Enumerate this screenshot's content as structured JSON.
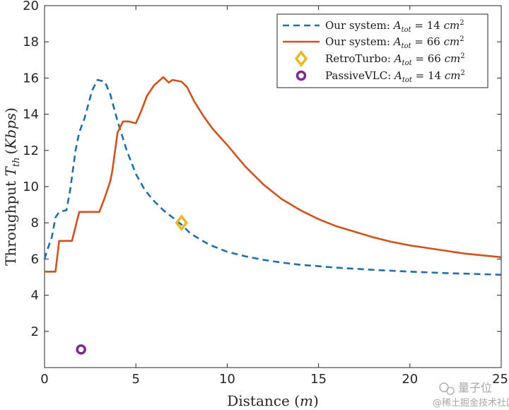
{
  "chart_data": {
    "type": "line",
    "title": "",
    "xlabel": "Distance (m)",
    "ylabel": "Throughput T_th (Kbps)",
    "xlim": [
      0,
      25
    ],
    "ylim": [
      0,
      20
    ],
    "xticks": [
      "0",
      "5",
      "10",
      "15",
      "20",
      "25"
    ],
    "yticks": [
      "2",
      "4",
      "6",
      "8",
      "10",
      "12",
      "14",
      "16",
      "18",
      "20"
    ],
    "grid": false,
    "legend_position": "top-right",
    "series": [
      {
        "name": "Our system: A_tot = 14 cm^2",
        "style": "dashed",
        "color": "#1f6fad",
        "x": [
          0,
          0.15,
          0.4,
          0.6,
          0.8,
          1.2,
          1.4,
          1.7,
          1.9,
          2.2,
          2.6,
          2.9,
          3.3,
          3.6,
          4.0,
          4.5,
          5.0,
          5.5,
          6.0,
          6.5,
          7.0,
          7.5,
          8,
          9,
          10,
          11,
          12,
          13,
          14,
          15,
          16,
          17,
          18,
          19,
          20,
          21,
          22,
          23,
          24,
          25
        ],
        "y": [
          6.0,
          6.5,
          7.2,
          8.3,
          8.6,
          8.7,
          9.8,
          12.0,
          13.0,
          13.8,
          15.3,
          15.9,
          15.8,
          15.1,
          13.6,
          12.0,
          10.7,
          9.8,
          9.2,
          8.7,
          8.3,
          7.9,
          7.4,
          6.8,
          6.4,
          6.15,
          5.95,
          5.8,
          5.68,
          5.6,
          5.52,
          5.46,
          5.4,
          5.35,
          5.3,
          5.26,
          5.22,
          5.19,
          5.16,
          5.13
        ]
      },
      {
        "name": "Our system: A_tot = 66 cm^2",
        "style": "solid",
        "color": "#d0521c",
        "x": [
          0,
          0.6,
          0.8,
          1.5,
          1.9,
          2.0,
          3.0,
          3.3,
          3.6,
          3.7,
          4.0,
          4.3,
          4.6,
          5.0,
          5.3,
          5.6,
          6.0,
          6.5,
          6.8,
          7.0,
          7.5,
          7.8,
          8.2,
          8.7,
          9.2,
          10,
          11,
          12,
          13,
          14,
          15,
          16,
          17,
          18,
          19,
          20,
          21,
          22,
          23,
          24,
          25
        ],
        "y": [
          5.3,
          5.3,
          7.0,
          7.0,
          8.6,
          8.6,
          8.6,
          9.4,
          10.3,
          10.8,
          13.0,
          13.6,
          13.6,
          13.5,
          14.2,
          15.0,
          15.6,
          16.05,
          15.75,
          15.9,
          15.8,
          15.5,
          14.7,
          13.9,
          13.2,
          12.3,
          11.1,
          10.1,
          9.3,
          8.7,
          8.2,
          7.8,
          7.5,
          7.2,
          6.95,
          6.75,
          6.6,
          6.45,
          6.3,
          6.2,
          6.1
        ]
      },
      {
        "name": "RetroTurbo: A_tot = 66 cm^2",
        "style": "marker-diamond",
        "color": "#e8b828",
        "x": [
          7.5
        ],
        "y": [
          8.0
        ]
      },
      {
        "name": "PassiveVLC: A_tot = 14 cm^2",
        "style": "marker-circle",
        "color": "#7b2a91",
        "x": [
          2.0
        ],
        "y": [
          1.0
        ]
      }
    ],
    "legend": [
      {
        "prefix": "Our system: ",
        "var": "A",
        "sub": "tot",
        "value": " = 14 ",
        "unit": "cm",
        "exp": "2"
      },
      {
        "prefix": "Our system: ",
        "var": "A",
        "sub": "tot",
        "value": " = 66 ",
        "unit": "cm",
        "exp": "2"
      },
      {
        "prefix": "RetroTurbo: ",
        "var": "A",
        "sub": "tot",
        "value": " = 66 ",
        "unit": "cm",
        "exp": "2"
      },
      {
        "prefix": "PassiveVLC: ",
        "var": "A",
        "sub": "tot",
        "value": " = 14 ",
        "unit": "cm",
        "exp": "2"
      }
    ],
    "axis_text": {
      "x_word": "Distance ",
      "x_unit": "m",
      "y_word": "Throughput ",
      "y_var": "T",
      "y_sub": "th",
      "y_unit": "Kbps"
    }
  },
  "watermark": {
    "brand": "量子位",
    "credit": "@稀土掘金技术社区"
  }
}
